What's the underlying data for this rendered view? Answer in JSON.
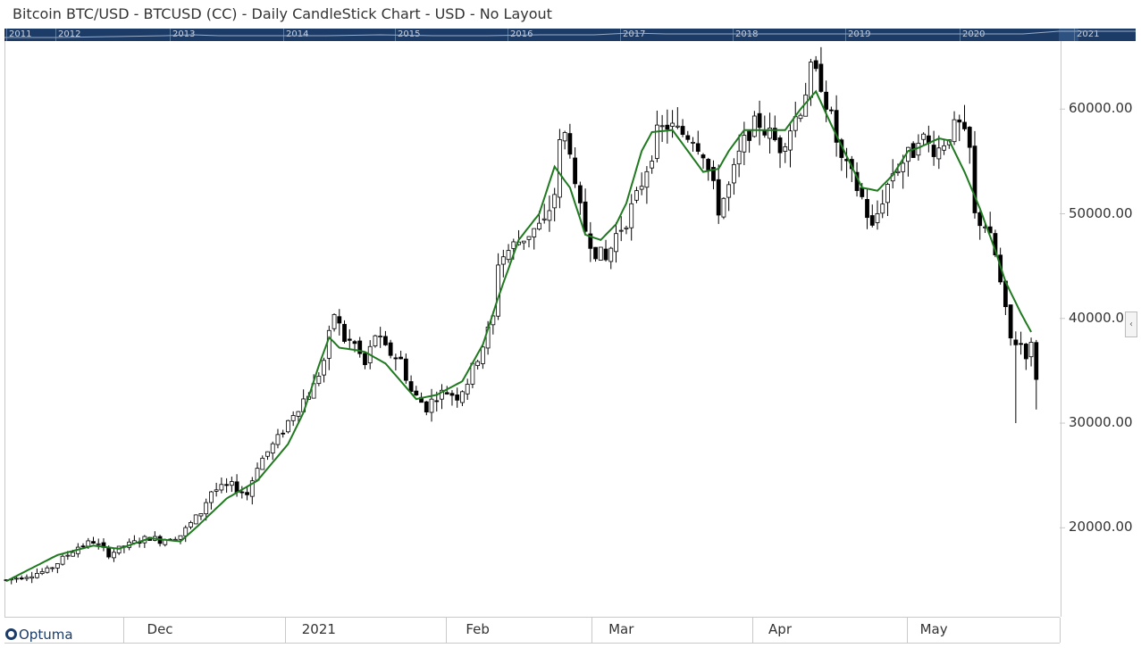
{
  "title": "Bitcoin BTC/USD - BTCUSD (CC) - Daily CandleStick Chart - USD - No Layout",
  "navigator": {
    "years": [
      "2011",
      "2012",
      "2013",
      "2014",
      "2015",
      "2016",
      "2017",
      "2018",
      "2019",
      "2020",
      "2021"
    ]
  },
  "logo": "Optuma",
  "right_tab_glyph": "‹",
  "colors": {
    "nav_bg": "#1c3c67",
    "ma_line": "#1f7a1f",
    "candle": "#000000"
  },
  "chart_data": {
    "type": "candlestick",
    "title": "Bitcoin BTC/USD - BTCUSD (CC) - Daily CandleStick Chart - USD - No Layout",
    "ylim": [
      11500,
      66500
    ],
    "yticks": [
      20000,
      30000,
      40000,
      50000,
      60000
    ],
    "ytick_labels": [
      "20000.00",
      "30000.00",
      "40000.00",
      "50000.00",
      "60000.00"
    ],
    "xticks": [
      {
        "label": "Dec",
        "day": 30
      },
      {
        "label": "2021",
        "day": 61
      },
      {
        "label": "Feb",
        "day": 92
      },
      {
        "label": "Mar",
        "day": 120
      },
      {
        "label": "Apr",
        "day": 151
      },
      {
        "label": "May",
        "day": 181
      }
    ],
    "day_range": [
      0,
      204
    ],
    "overlay_series_name": "",
    "candle_keyframes": [
      [
        0,
        15000
      ],
      [
        8,
        15900
      ],
      [
        14,
        18200
      ],
      [
        17,
        18700
      ],
      [
        20,
        17500
      ],
      [
        24,
        18400
      ],
      [
        28,
        19100
      ],
      [
        30,
        18800
      ],
      [
        34,
        19300
      ],
      [
        38,
        21500
      ],
      [
        40,
        23500
      ],
      [
        44,
        24000
      ],
      [
        47,
        23200
      ],
      [
        49,
        26000
      ],
      [
        53,
        28500
      ],
      [
        56,
        31000
      ],
      [
        60,
        33500
      ],
      [
        62,
        36000
      ],
      [
        64,
        40500
      ],
      [
        66,
        38000
      ],
      [
        68,
        37500
      ],
      [
        70,
        35500
      ],
      [
        72,
        38500
      ],
      [
        74,
        37000
      ],
      [
        77,
        36000
      ],
      [
        79,
        33000
      ],
      [
        82,
        31500
      ],
      [
        84,
        32700
      ],
      [
        86,
        33000
      ],
      [
        88,
        32600
      ],
      [
        90,
        34000
      ],
      [
        93,
        37500
      ],
      [
        95,
        40000
      ],
      [
        96,
        45500
      ],
      [
        99,
        47000
      ],
      [
        103,
        48500
      ],
      [
        105,
        49000
      ],
      [
        107,
        52000
      ],
      [
        108,
        56500
      ],
      [
        109,
        57500
      ],
      [
        110,
        56500
      ],
      [
        111,
        52000
      ],
      [
        113,
        48500
      ],
      [
        115,
        46500
      ],
      [
        117,
        45500
      ],
      [
        119,
        48000
      ],
      [
        121,
        49500
      ],
      [
        123,
        51500
      ],
      [
        125,
        54500
      ],
      [
        127,
        57500
      ],
      [
        129,
        58500
      ],
      [
        131,
        57800
      ],
      [
        134,
        57500
      ],
      [
        136,
        56000
      ],
      [
        139,
        50500
      ],
      [
        141,
        52500
      ],
      [
        143,
        55500
      ],
      [
        145,
        58000
      ],
      [
        147,
        58700
      ],
      [
        149,
        57500
      ],
      [
        151,
        56500
      ],
      [
        153,
        58300
      ],
      [
        155,
        60200
      ],
      [
        157,
        63500
      ],
      [
        159,
        62600
      ],
      [
        161,
        59000
      ],
      [
        163,
        55000
      ],
      [
        165,
        53500
      ],
      [
        167,
        51500
      ],
      [
        169,
        48500
      ],
      [
        171,
        51500
      ],
      [
        173,
        54000
      ],
      [
        175,
        55000
      ],
      [
        177,
        56000
      ],
      [
        178,
        57700
      ],
      [
        180,
        56500
      ],
      [
        182,
        56200
      ],
      [
        184,
        57800
      ],
      [
        186,
        58300
      ],
      [
        188,
        56000
      ],
      [
        189,
        49700
      ],
      [
        191,
        49000
      ],
      [
        193,
        46000
      ],
      [
        195,
        40500
      ],
      [
        196,
        38000
      ],
      [
        198,
        37600
      ],
      [
        199,
        36700
      ],
      [
        200,
        37300
      ],
      [
        201,
        34500
      ]
    ],
    "ma_keyframes": [
      [
        0,
        14900
      ],
      [
        10,
        17400
      ],
      [
        17,
        18300
      ],
      [
        22,
        18000
      ],
      [
        28,
        19000
      ],
      [
        34,
        18700
      ],
      [
        37,
        20000
      ],
      [
        43,
        22800
      ],
      [
        49,
        24500
      ],
      [
        55,
        28000
      ],
      [
        58,
        31000
      ],
      [
        61,
        35500
      ],
      [
        63,
        38200
      ],
      [
        65,
        37200
      ],
      [
        68,
        37000
      ],
      [
        70,
        36800
      ],
      [
        74,
        35700
      ],
      [
        77,
        34000
      ],
      [
        80,
        32300
      ],
      [
        84,
        32700
      ],
      [
        89,
        34000
      ],
      [
        93,
        37500
      ],
      [
        96,
        42000
      ],
      [
        100,
        47500
      ],
      [
        104,
        50000
      ],
      [
        107,
        54500
      ],
      [
        110,
        52500
      ],
      [
        113,
        48000
      ],
      [
        116,
        47500
      ],
      [
        119,
        49000
      ],
      [
        121,
        51000
      ],
      [
        124,
        56000
      ],
      [
        126,
        57800
      ],
      [
        130,
        58000
      ],
      [
        133,
        56000
      ],
      [
        136,
        54000
      ],
      [
        139,
        54300
      ],
      [
        141,
        56000
      ],
      [
        144,
        58000
      ],
      [
        149,
        58000
      ],
      [
        152,
        58000
      ],
      [
        155,
        60000
      ],
      [
        158,
        61700
      ],
      [
        161,
        58500
      ],
      [
        164,
        55500
      ],
      [
        167,
        52500
      ],
      [
        170,
        52200
      ],
      [
        173,
        53700
      ],
      [
        176,
        56000
      ],
      [
        178,
        56300
      ],
      [
        182,
        57200
      ],
      [
        184,
        57000
      ],
      [
        187,
        54000
      ],
      [
        190,
        50500
      ],
      [
        193,
        46500
      ],
      [
        195,
        43500
      ],
      [
        198,
        40500
      ],
      [
        200,
        38700
      ]
    ]
  }
}
